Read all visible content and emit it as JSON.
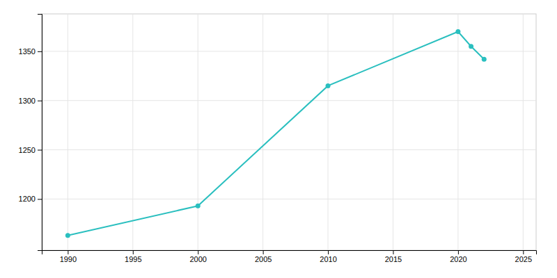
{
  "chart_data": {
    "type": "line",
    "x": [
      1990,
      2000,
      2010,
      2020,
      2021,
      2022
    ],
    "values": [
      1163,
      1193,
      1315,
      1370,
      1355,
      1342
    ],
    "color": "#2abfbf",
    "marker": "circle",
    "xlim": [
      1988,
      2026
    ],
    "ylim": [
      1148,
      1388
    ],
    "xticks": [
      1990,
      1995,
      2000,
      2005,
      2010,
      2015,
      2020,
      2025
    ],
    "yticks": [
      1200,
      1250,
      1300,
      1350
    ],
    "grid": true
  }
}
